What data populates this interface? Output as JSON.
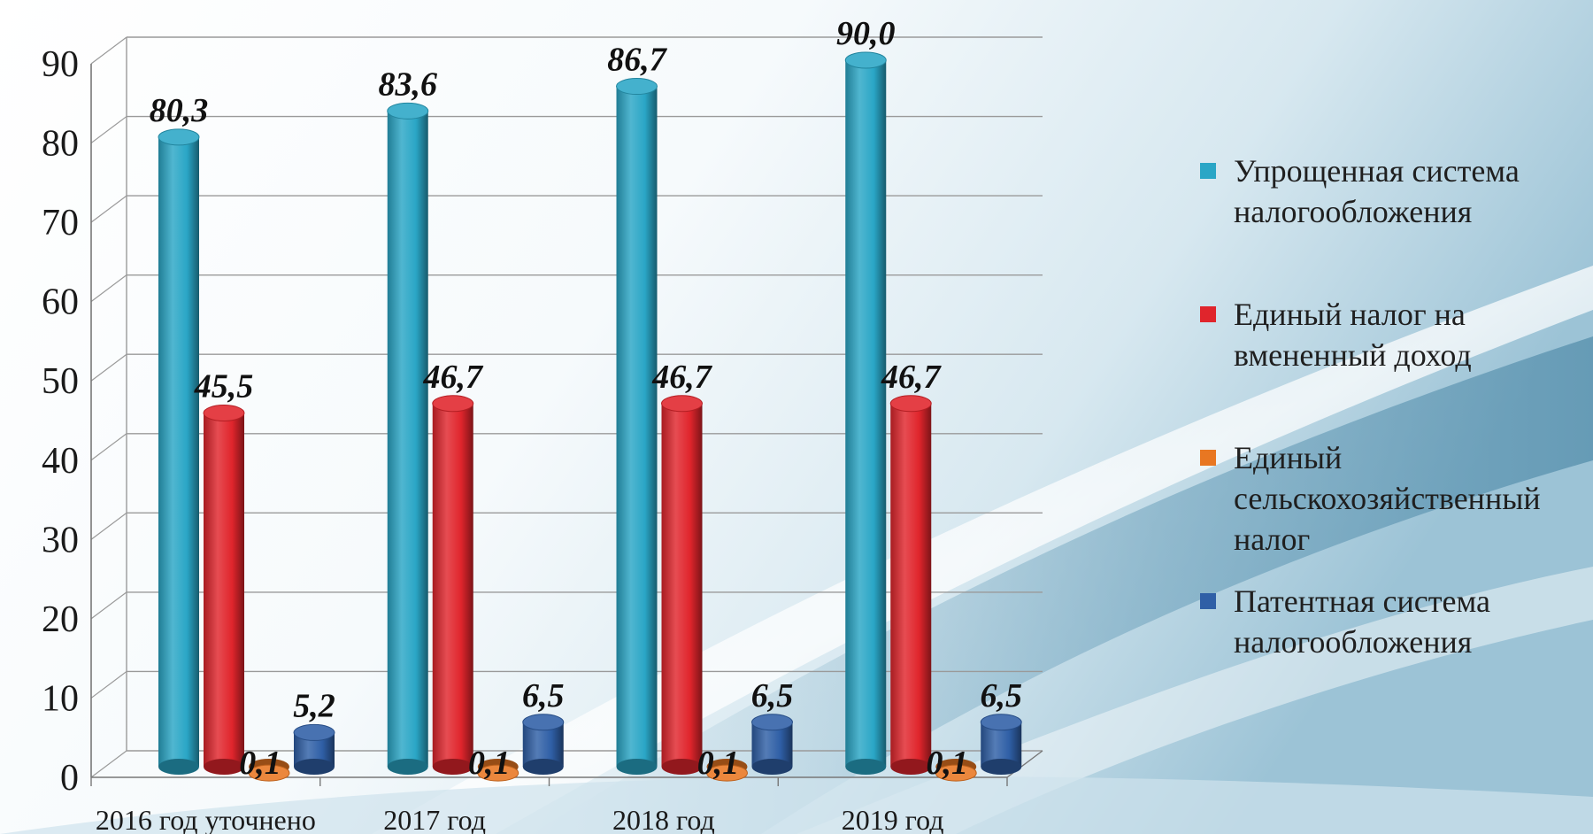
{
  "chart_data": {
    "type": "bar",
    "title": "",
    "xlabel": "",
    "ylabel": "",
    "ylim": [
      0,
      90
    ],
    "yticks": [
      "0",
      "10",
      "20",
      "30",
      "40",
      "50",
      "60",
      "70",
      "80",
      "90"
    ],
    "grid": true,
    "legend_position": "right",
    "categories": [
      "2016 год уточнено",
      "2017 год",
      "2018 год",
      "2019 год"
    ],
    "series": [
      {
        "name": "Упрощенная система налогообложения",
        "color": "#2aa6c6",
        "values": [
          80.3,
          83.6,
          86.7,
          90.0
        ],
        "labels": [
          "80,3",
          "83,6",
          "86,7",
          "90,0"
        ]
      },
      {
        "name": "Единый налог на вмененный доход",
        "color": "#e0252c",
        "values": [
          45.5,
          46.7,
          46.7,
          46.7
        ],
        "labels": [
          "45,5",
          "46,7",
          "46,7",
          "46,7"
        ]
      },
      {
        "name": "Единый сельскохозяйственный налог",
        "color": "#e87722",
        "values": [
          0.1,
          0.1,
          0.1,
          0.1
        ],
        "labels": [
          "0,1",
          "0,1",
          "0,1",
          "0,1"
        ]
      },
      {
        "name": "Патентная система налогообложения",
        "color": "#2f5fa6",
        "values": [
          5.2,
          6.5,
          6.5,
          6.5
        ],
        "labels": [
          "5,2",
          "6,5",
          "6,5",
          "6,5"
        ]
      }
    ]
  }
}
